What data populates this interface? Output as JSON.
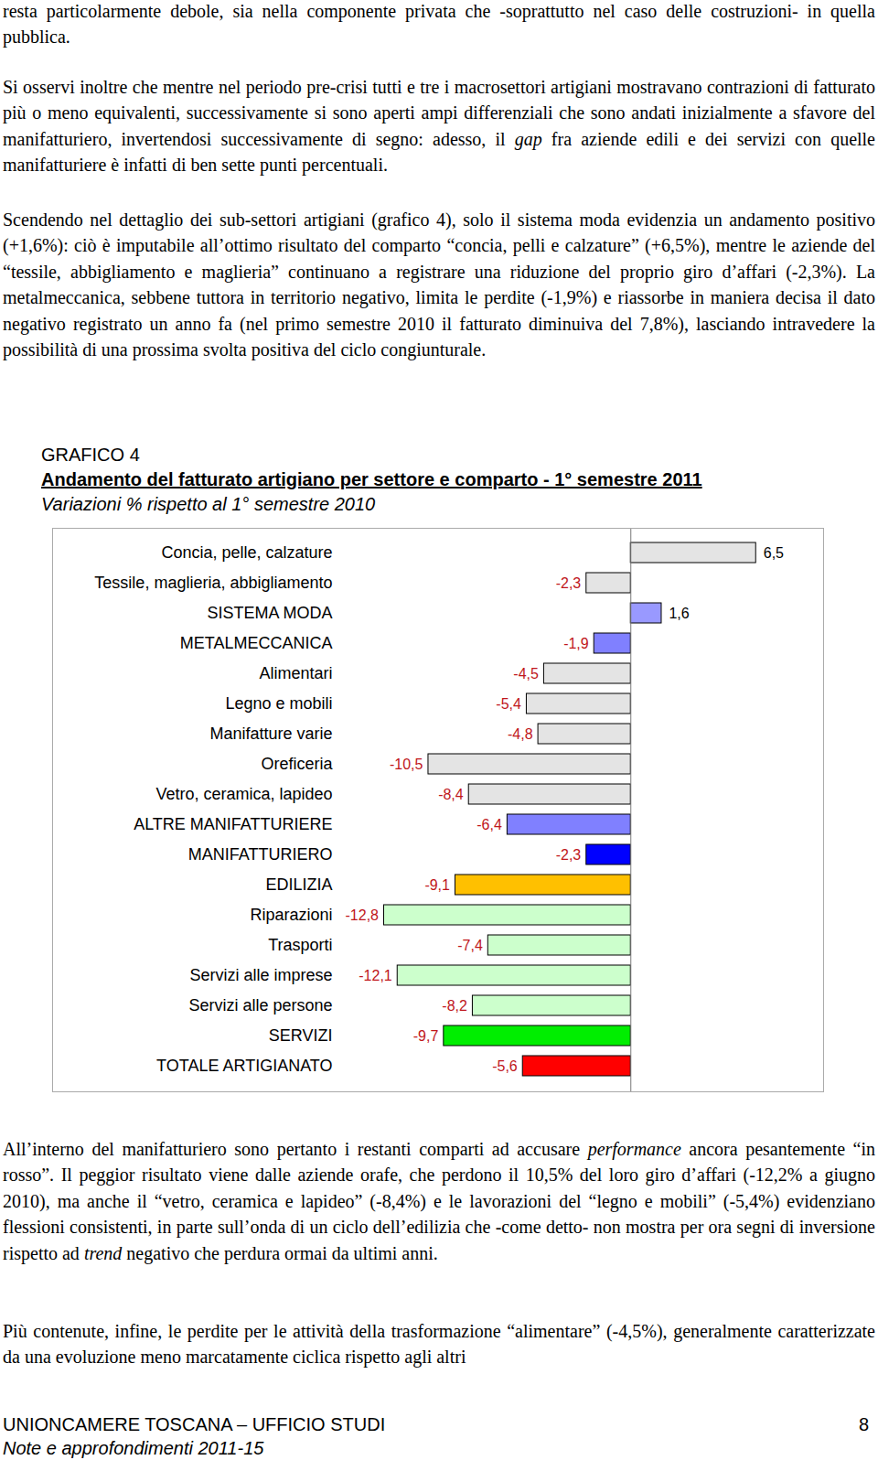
{
  "paragraphs_before": [
    [
      "resta particolarmente debole, sia nella componente privata che -soprattutto nel caso delle costruzioni- in quella pubblica."
    ],
    [
      "Si osservi inoltre che mentre nel periodo pre-crisi tutti e tre i macrosettori artigiani mostravano contrazioni di fatturato più o meno equivalenti, successivamente si sono aperti ampi differenziali che sono andati inizialmente a sfavore del manifatturiero, invertendosi successivamente di segno: adesso, il ",
      {
        "em": "gap"
      },
      " fra aziende edili e dei servizi con quelle manifatturiere è infatti di ben sette punti percentuali."
    ],
    [
      "Scendendo nel dettaglio dei sub-settori artigiani (grafico 4), solo il sistema moda evidenzia un andamento positivo (+1,6%): ciò è imputabile all’ottimo risultato del comparto “concia, pelli e calzature” (+6,5%), mentre le aziende del “tessile, abbigliamento e maglieria” continuano a registrare una riduzione del proprio giro d’affari (-2,3%). La metalmeccanica, sebbene tuttora in territorio negativo, limita le perdite (-1,9%) e riassorbe in maniera decisa il dato negativo registrato un anno fa (nel primo semestre 2010 il fatturato diminuiva del 7,8%), lasciando intravedere la possibilità di una prossima svolta positiva del ciclo congiunturale."
    ]
  ],
  "figure_label": "GRAFICO 4",
  "chart_data": {
    "type": "bar",
    "orientation": "horizontal",
    "title": "Andamento del fatturato artigiano per settore e comparto - 1° semestre 2011",
    "subtitle": "Variazioni % rispetto al 1° semestre 2010",
    "categories": [
      "Concia, pelle, calzature",
      "Tessile, maglieria, abbigliamento",
      "SISTEMA MODA",
      "METALMECCANICA",
      "Alimentari",
      "Legno e mobili",
      "Manifatture varie",
      "Oreficeria",
      "Vetro, ceramica, lapideo",
      "ALTRE MANIFATTURIERE",
      "MANIFATTURIERO",
      "EDILIZIA",
      "Riparazioni",
      "Trasporti",
      "Servizi alle imprese",
      "Servizi alle persone",
      "SERVIZI",
      "TOTALE ARTIGIANATO"
    ],
    "values": [
      6.5,
      -2.3,
      1.6,
      -1.9,
      -4.5,
      -5.4,
      -4.8,
      -10.5,
      -8.4,
      -6.4,
      -2.3,
      -9.1,
      -12.8,
      -7.4,
      -12.1,
      -8.2,
      -9.7,
      -5.6
    ],
    "value_labels": [
      "6,5",
      "-2,3",
      "1,6",
      "-1,9",
      "-4,5",
      "-5,4",
      "-4,8",
      "-10,5",
      "-8,4",
      "-6,4",
      "-2,3",
      "-9,1",
      "-12,8",
      "-7,4",
      "-12,1",
      "-8,2",
      "-9,7",
      "-5,6"
    ],
    "colors": [
      "#e4e4e4",
      "#e4e4e4",
      "#9999ff",
      "#8080ff",
      "#e4e4e4",
      "#e4e4e4",
      "#e4e4e4",
      "#e4e4e4",
      "#e4e4e4",
      "#8080ff",
      "#0000ff",
      "#ffc000",
      "#ccffcc",
      "#ccffcc",
      "#ccffcc",
      "#ccffcc",
      "#00ee00",
      "#ff0000"
    ],
    "xlim": [
      -30,
      10
    ],
    "xticks": [],
    "tick_labels": false,
    "grid": false,
    "data_labels": true
  },
  "paragraphs_after": [
    [
      "All’interno del manifatturiero sono pertanto i restanti comparti ad accusare ",
      {
        "em": "performance"
      },
      " ancora pesantemente “in rosso”. Il peggior risultato viene dalle aziende orafe, che perdono il 10,5% del loro giro d’affari (-12,2% a giugno 2010), ma anche il “vetro, ceramica e lapideo” (-8,4%) e le lavorazioni del “legno e mobili” (-5,4%) evidenziano flessioni consistenti, in parte sull’onda di un ciclo dell’edilizia che -come detto- non mostra per ora segni di inversione rispetto ad ",
      {
        "em": "trend"
      },
      " negativo che perdura ormai da ultimi anni."
    ],
    [
      "Più contenute, infine, le perdite per le attività della trasformazione “alimentare” (-4,5%), generalmente caratterizzate da una evoluzione meno marcatamente ciclica rispetto agli altri"
    ]
  ],
  "footer": {
    "left": "UNIONCAMERE TOSCANA – UFFICIO STUDI",
    "page": 8,
    "series": "Note e approfondimenti 2011-15"
  }
}
